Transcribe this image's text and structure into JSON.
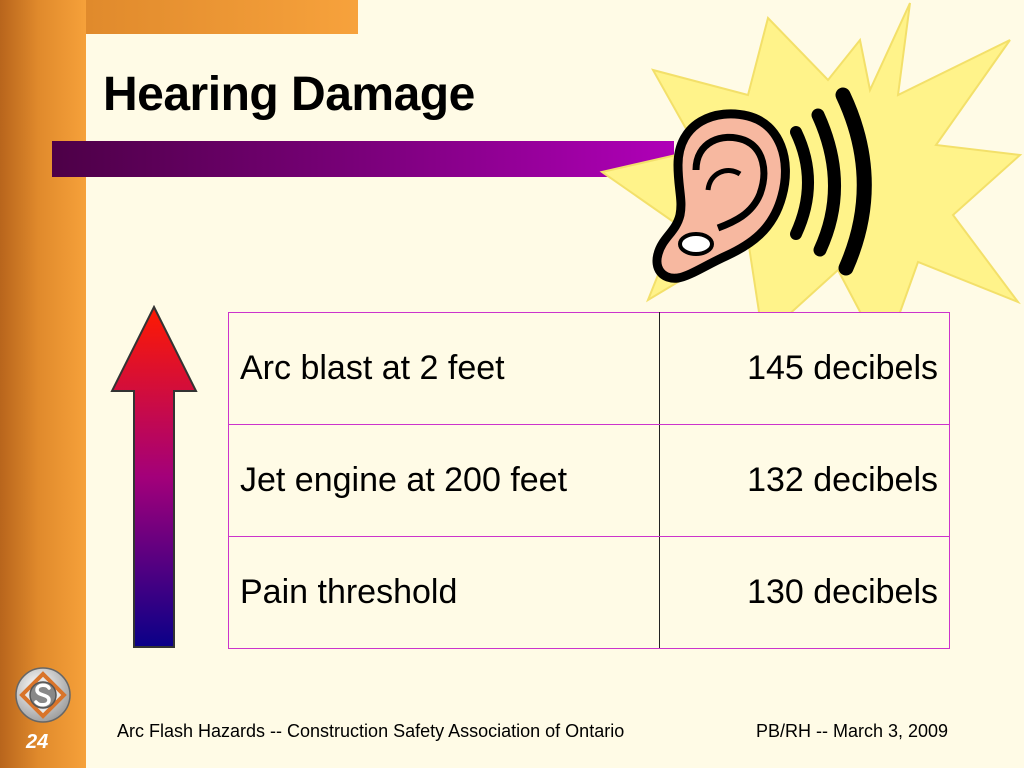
{
  "slide": {
    "title": "Hearing Damage",
    "slide_number": "24"
  },
  "table": {
    "rows": [
      {
        "label": "Arc blast at 2 feet",
        "value": "145 decibels"
      },
      {
        "label": "Jet engine at 200 feet",
        "value": "132 decibels"
      },
      {
        "label": "Pain threshold",
        "value": "130 decibels"
      }
    ]
  },
  "footer": {
    "left": "Arc Flash Hazards -- Construction Safety Association of Ontario",
    "right": "PB/RH -- March 3, 2009"
  },
  "images": {
    "ear": "ear-with-sound-burst-icon",
    "arrow": "increasing-loudness-arrow-icon",
    "logo": "association-logo-icon"
  },
  "colors": {
    "background": "#fffbe6",
    "accent_orange": "#f6a13a",
    "accent_purple": "#7a007a",
    "table_border": "#cc33cc",
    "burst_yellow": "#fff38a"
  }
}
